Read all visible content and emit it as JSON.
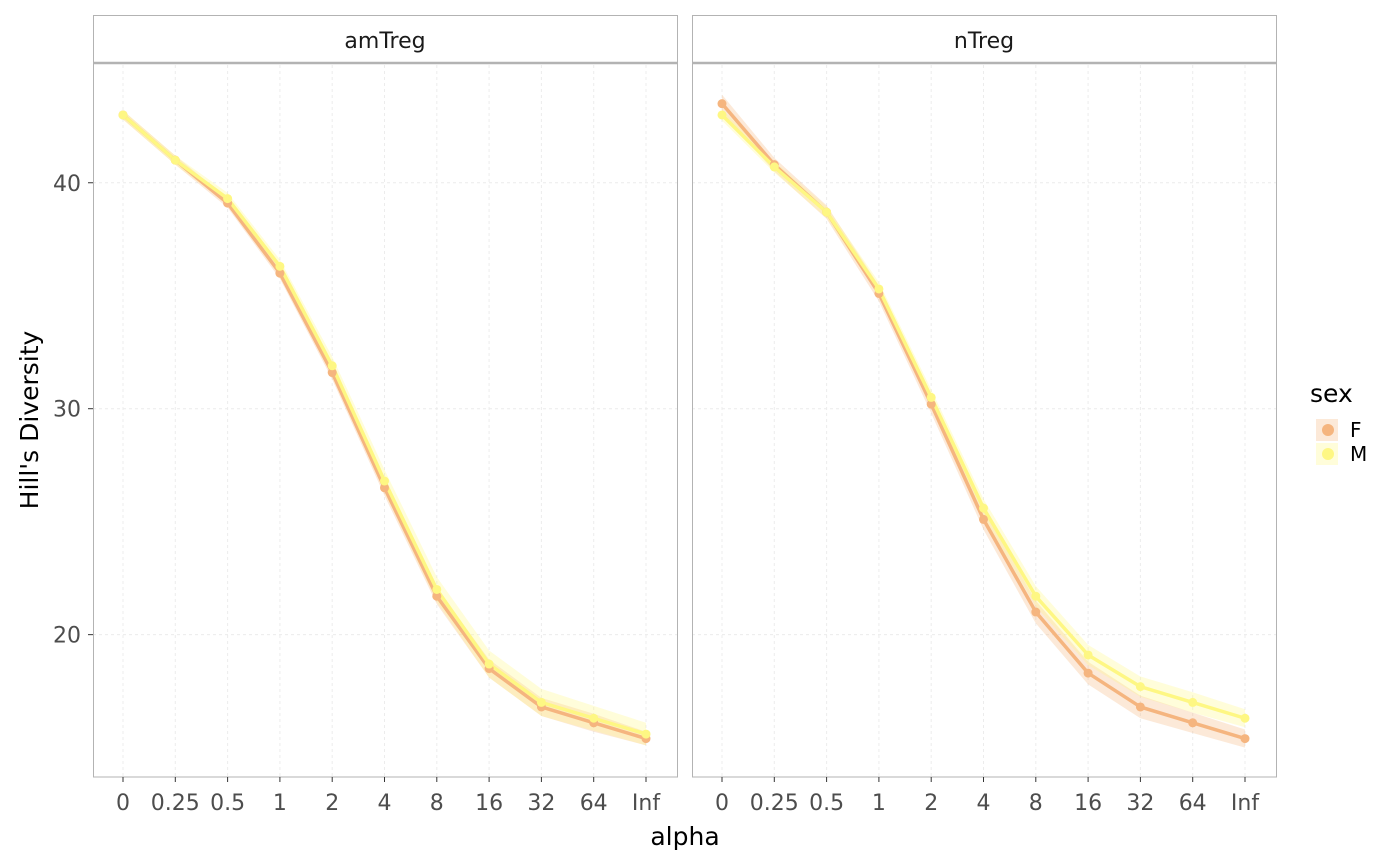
{
  "chart_data": {
    "type": "line",
    "xlabel": "alpha",
    "ylabel": "Hill's Diversity",
    "x_categories": [
      "0",
      "0.25",
      "0.5",
      "1",
      "2",
      "4",
      "8",
      "16",
      "32",
      "64",
      "Inf"
    ],
    "y_ticks": [
      20,
      30,
      40
    ],
    "ylim": [
      13.7,
      45.3
    ],
    "grid": true,
    "legend": {
      "title": "sex",
      "position": "right",
      "entries": [
        {
          "label": "F",
          "color": "#f5b57f"
        },
        {
          "label": "M",
          "color": "#fef783"
        }
      ]
    },
    "panels": [
      {
        "title": "amTreg",
        "series": [
          {
            "name": "F",
            "color": "#f5b57f",
            "values": [
              43.0,
              41.0,
              39.1,
              36.0,
              31.6,
              26.5,
              21.7,
              18.5,
              16.8,
              16.1,
              15.4
            ],
            "ribbon": [
              0.2,
              0.2,
              0.2,
              0.25,
              0.3,
              0.35,
              0.35,
              0.4,
              0.4,
              0.4,
              0.3
            ]
          },
          {
            "name": "M",
            "color": "#fef783",
            "values": [
              43.0,
              41.0,
              39.3,
              36.3,
              31.9,
              26.8,
              22.0,
              18.7,
              17.0,
              16.3,
              15.6
            ],
            "ribbon": [
              0.2,
              0.2,
              0.25,
              0.3,
              0.4,
              0.5,
              0.55,
              0.6,
              0.6,
              0.55,
              0.5
            ]
          }
        ]
      },
      {
        "title": "nTreg",
        "series": [
          {
            "name": "F",
            "color": "#f5b57f",
            "values": [
              43.5,
              40.8,
              38.7,
              35.1,
              30.2,
              25.1,
              21.0,
              18.3,
              16.8,
              16.1,
              15.4
            ],
            "ribbon": [
              0.4,
              0.3,
              0.3,
              0.35,
              0.4,
              0.45,
              0.5,
              0.5,
              0.5,
              0.45,
              0.4
            ]
          },
          {
            "name": "M",
            "color": "#fef783",
            "values": [
              43.0,
              40.7,
              38.7,
              35.3,
              30.5,
              25.6,
              21.7,
              19.1,
              17.7,
              17.0,
              16.3
            ],
            "ribbon": [
              0.25,
              0.25,
              0.25,
              0.3,
              0.35,
              0.4,
              0.45,
              0.45,
              0.45,
              0.45,
              0.4
            ]
          }
        ]
      }
    ]
  }
}
